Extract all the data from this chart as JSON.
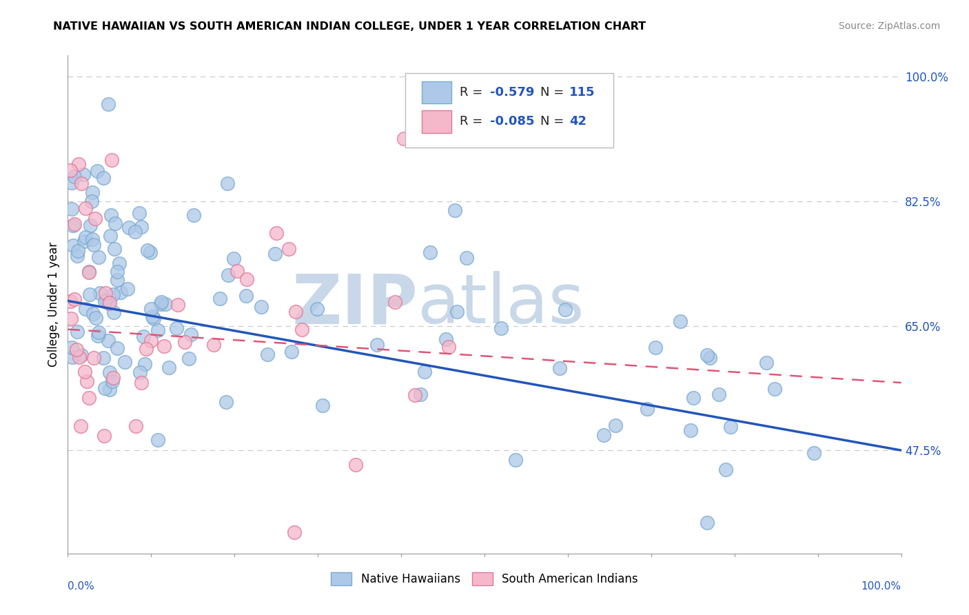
{
  "title": "NATIVE HAWAIIAN VS SOUTH AMERICAN INDIAN COLLEGE, UNDER 1 YEAR CORRELATION CHART",
  "source": "Source: ZipAtlas.com",
  "ylabel": "College, Under 1 year",
  "right_yticks": [
    47.5,
    65.0,
    82.5,
    100.0
  ],
  "right_ytick_labels": [
    "47.5%",
    "65.0%",
    "82.5%",
    "100.0%"
  ],
  "xmin": 0.0,
  "xmax": 100.0,
  "ymin": 33.0,
  "ymax": 103.0,
  "blue_color": "#adc8e8",
  "blue_edge": "#7aaad0",
  "pink_color": "#f5b8cb",
  "pink_edge": "#e07898",
  "trend_blue": "#2255bb",
  "trend_pink": "#dd5577",
  "watermark_zip": "ZIP",
  "watermark_atlas": "atlas",
  "watermark_color": "#c8d8e8",
  "legend_label1": "Native Hawaiians",
  "legend_label2": "South American Indians",
  "blue_line_start_y": 68.5,
  "blue_line_end_y": 47.5,
  "pink_line_start_y": 64.5,
  "pink_line_end_y": 57.0
}
